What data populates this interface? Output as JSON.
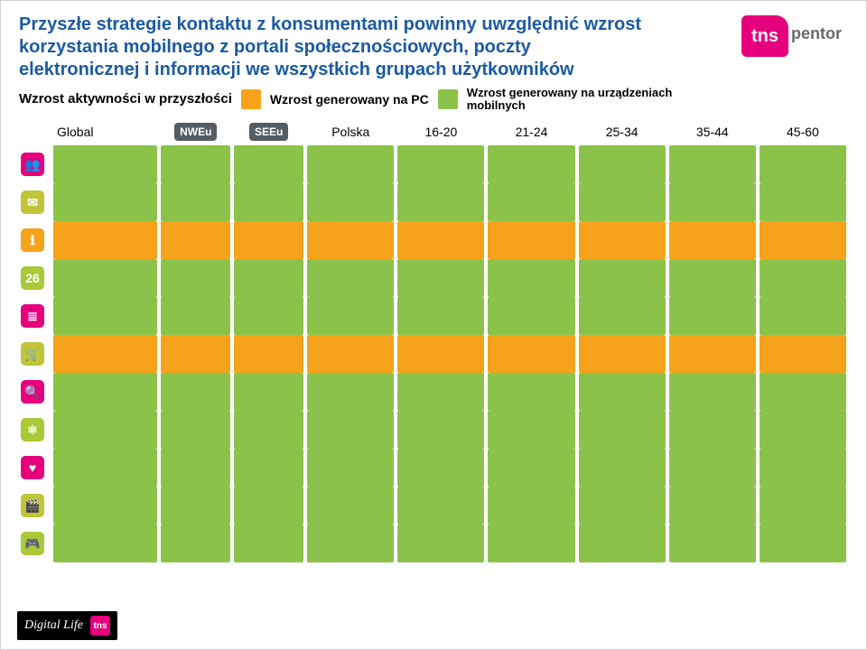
{
  "title": "Przyszłe strategie kontaktu z konsumentami powinny uwzględnić wzrost korzystania mobilnego z portali społecznościowych, poczty elektronicznej i informacji we wszystkich grupach użytkowników",
  "subtitle": "Wzrost aktywności w przyszłości",
  "legend": {
    "pc": {
      "label": "Wzrost generowany na PC",
      "color": "#f5a31a"
    },
    "mobile": {
      "label": "Wzrost generowany na urządzeniach mobilnych",
      "color": "#8bc34a"
    }
  },
  "logo": {
    "brand": "tns",
    "sub": "pentor"
  },
  "columns": [
    {
      "label": "Global",
      "kind": "text"
    },
    {
      "label": "NWEu",
      "kind": "badge"
    },
    {
      "label": "SEEu",
      "kind": "badge"
    },
    {
      "label": "Polska",
      "kind": "text"
    },
    {
      "label": "16-20",
      "kind": "text"
    },
    {
      "label": "21-24",
      "kind": "text"
    },
    {
      "label": "25-34",
      "kind": "text"
    },
    {
      "label": "35-44",
      "kind": "text"
    },
    {
      "label": "45-60",
      "kind": "text"
    }
  ],
  "row_icons": [
    {
      "glyph": "👥",
      "bg": "#e6007e"
    },
    {
      "glyph": "✉",
      "bg": "#c0c53a"
    },
    {
      "glyph": "ℹ",
      "bg": "#f5a31a"
    },
    {
      "glyph": "26",
      "bg": "#a9c938"
    },
    {
      "glyph": "≣",
      "bg": "#e6007e"
    },
    {
      "glyph": "🛒",
      "bg": "#c0c53a"
    },
    {
      "glyph": "🔍",
      "bg": "#e6007e"
    },
    {
      "glyph": "⚛",
      "bg": "#a9c938"
    },
    {
      "glyph": "♥",
      "bg": "#e6007e"
    },
    {
      "glyph": "🎬",
      "bg": "#c0c53a"
    },
    {
      "glyph": "🎮",
      "bg": "#a9c938"
    }
  ],
  "colors": {
    "pc": "#f5a31a",
    "mobile": "#8bc34a"
  },
  "grid": [
    [
      "m",
      "m",
      "m",
      "m",
      "m",
      "m",
      "m",
      "m",
      "m"
    ],
    [
      "m",
      "m",
      "m",
      "m",
      "m",
      "m",
      "m",
      "m",
      "m"
    ],
    [
      "p",
      "p",
      "p",
      "p",
      "p",
      "p",
      "p",
      "p",
      "p"
    ],
    [
      "m",
      "m",
      "m",
      "m",
      "m",
      "m",
      "m",
      "m",
      "m"
    ],
    [
      "m",
      "m",
      "m",
      "m",
      "m",
      "m",
      "m",
      "m",
      "m"
    ],
    [
      "p",
      "p",
      "p",
      "p",
      "p",
      "p",
      "p",
      "p",
      "p"
    ],
    [
      "m",
      "m",
      "m",
      "m",
      "m",
      "m",
      "m",
      "m",
      "m"
    ],
    [
      "m",
      "m",
      "m",
      "m",
      "m",
      "m",
      "m",
      "m",
      "m"
    ],
    [
      "m",
      "m",
      "m",
      "m",
      "m",
      "m",
      "m",
      "m",
      "m"
    ],
    [
      "m",
      "m",
      "m",
      "m",
      "m",
      "m",
      "m",
      "m",
      "m"
    ],
    [
      "m",
      "m",
      "m",
      "m",
      "m",
      "m",
      "m",
      "m",
      "m"
    ]
  ],
  "footer": {
    "label": "Digital Life",
    "brand": "tns"
  }
}
